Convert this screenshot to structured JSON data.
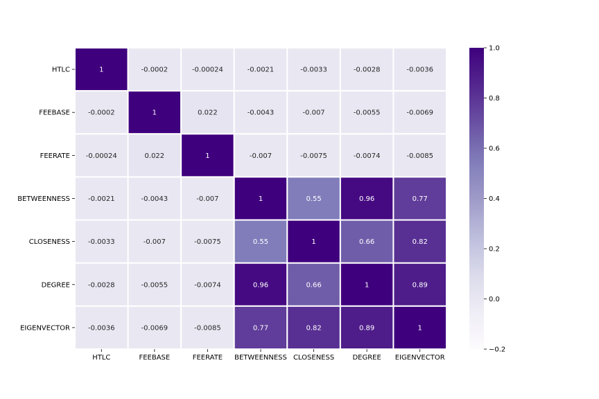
{
  "chart_data": {
    "type": "heatmap",
    "title": "",
    "xlabel": "",
    "ylabel": "",
    "rows": [
      "HTLC",
      "FEEBASE",
      "FEERATE",
      "BETWEENNESS",
      "CLOSENESS",
      "DEGREE",
      "EIGENVECTOR"
    ],
    "columns": [
      "HTLC",
      "FEEBASE",
      "FEERATE",
      "BETWEENNESS",
      "CLOSENESS",
      "DEGREE",
      "EIGENVECTOR"
    ],
    "values": [
      [
        1,
        -0.0002,
        -0.00024,
        -0.0021,
        -0.0033,
        -0.0028,
        -0.0036
      ],
      [
        -0.0002,
        1,
        0.022,
        -0.0043,
        -0.007,
        -0.0055,
        -0.0069
      ],
      [
        -0.00024,
        0.022,
        1,
        -0.007,
        -0.0075,
        -0.0074,
        -0.0085
      ],
      [
        -0.0021,
        -0.0043,
        -0.007,
        1,
        0.55,
        0.96,
        0.77
      ],
      [
        -0.0033,
        -0.007,
        -0.0075,
        0.55,
        1,
        0.66,
        0.82
      ],
      [
        -0.0028,
        -0.0055,
        -0.0074,
        0.96,
        0.66,
        1,
        0.89
      ],
      [
        -0.0036,
        -0.0069,
        -0.0085,
        0.77,
        0.82,
        0.89,
        1
      ]
    ],
    "annotations": [
      [
        "1",
        "-0.0002",
        "-0.00024",
        "-0.0021",
        "-0.0033",
        "-0.0028",
        "-0.0036"
      ],
      [
        "-0.0002",
        "1",
        "0.022",
        "-0.0043",
        "-0.007",
        "-0.0055",
        "-0.0069"
      ],
      [
        "-0.00024",
        "0.022",
        "1",
        "-0.007",
        "-0.0075",
        "-0.0074",
        "-0.0085"
      ],
      [
        "-0.0021",
        "-0.0043",
        "-0.007",
        "1",
        "0.55",
        "0.96",
        "0.77"
      ],
      [
        "-0.0033",
        "-0.007",
        "-0.0075",
        "0.55",
        "1",
        "0.66",
        "0.82"
      ],
      [
        "-0.0028",
        "-0.0055",
        "-0.0074",
        "0.96",
        "0.66",
        "1",
        "0.89"
      ],
      [
        "-0.0036",
        "-0.0069",
        "-0.0085",
        "0.77",
        "0.82",
        "0.89",
        "1"
      ]
    ],
    "colormap": "Purples",
    "vmin": -0.2,
    "vmax": 1.0,
    "colorbar_ticks": [
      1.0,
      0.8,
      0.6,
      0.4,
      0.2,
      0.0,
      -0.2
    ],
    "colorbar_tick_labels": [
      "1.0",
      "0.8",
      "0.6",
      "0.4",
      "0.2",
      "0.0",
      "−0.2"
    ],
    "cell_border_color": "#ffffff",
    "legend": "right"
  }
}
